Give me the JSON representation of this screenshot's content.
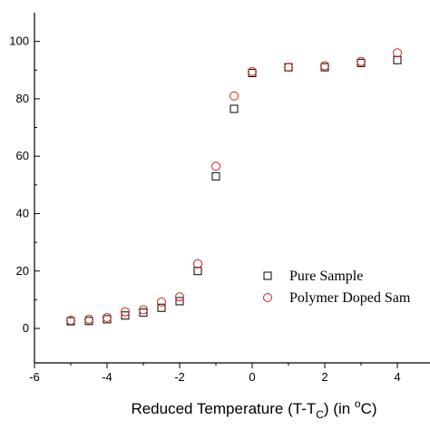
{
  "chart_data": {
    "type": "scatter",
    "title": "",
    "xlabel": {
      "pre": "Reduced Temperature (T-T",
      "sub": "C",
      "mid": ") (in ",
      "sup": "o",
      "post": "C)"
    },
    "ylabel": "",
    "xlim": [
      -6,
      4.9
    ],
    "ylim": [
      -12,
      110
    ],
    "xticks": [
      -6,
      -4,
      -2,
      0,
      2,
      4
    ],
    "yticks": [
      0,
      20,
      40,
      60,
      80,
      100
    ],
    "legend_position": "right",
    "series": [
      {
        "name": "Pure Sample",
        "marker": "square",
        "color": "#000000",
        "x": [
          -5,
          -4.5,
          -4,
          -3.5,
          -3,
          -2.5,
          -2,
          -1.5,
          -1,
          -0.5,
          0,
          1,
          2,
          3,
          4
        ],
        "y": [
          2.5,
          2.6,
          3.2,
          4.5,
          5.5,
          7.2,
          9.5,
          20,
          53,
          76.5,
          89,
          91,
          91,
          92.5,
          93.5
        ]
      },
      {
        "name": "Polymer Doped Sam",
        "marker": "circle",
        "color": "#d42020",
        "x": [
          -5,
          -4.5,
          -4,
          -3.5,
          -3,
          -2.5,
          -2,
          -1.5,
          -1,
          -0.5,
          0,
          1,
          2,
          3,
          4
        ],
        "y": [
          2.8,
          3.2,
          3.8,
          5.8,
          6.5,
          9.2,
          11,
          22.5,
          56.5,
          81,
          89.5,
          91,
          91.5,
          93,
          96
        ]
      }
    ]
  }
}
